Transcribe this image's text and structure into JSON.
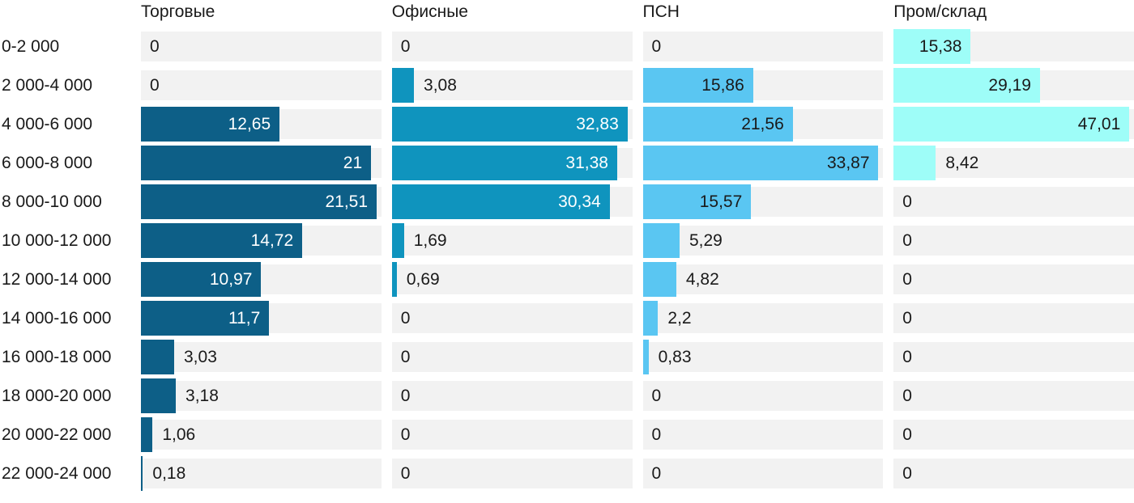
{
  "chart_data": {
    "type": "bar",
    "orientation": "horizontal",
    "title": "",
    "xlabel": "",
    "ylabel": "",
    "grid": false,
    "legend_position": "column-headers-top",
    "scale": "independent-per-series-max-full-width",
    "decimal_separator": ",",
    "track_color": "#f2f2f2",
    "text_color": "#1a1a1a",
    "categories": [
      "0-2 000",
      "2 000-4 000",
      "4 000-6 000",
      "6 000-8 000",
      "8 000-10 000",
      "10 000-12 000",
      "12 000-14 000",
      "14 000-16 000",
      "16 000-18 000",
      "18 000-20 000",
      "20 000-22 000",
      "22 000-24 000"
    ],
    "series": [
      {
        "name": "Торговые",
        "color": "#0d5f87",
        "label_color_inside": "#ffffff",
        "values": [
          0,
          0,
          12.65,
          21,
          21.51,
          14.72,
          10.97,
          11.7,
          3.03,
          3.18,
          1.06,
          0.18
        ]
      },
      {
        "name": "Офисные",
        "color": "#0f94be",
        "label_color_inside": "#ffffff",
        "values": [
          0,
          3.08,
          32.83,
          31.38,
          30.34,
          1.69,
          0.69,
          0,
          0,
          0,
          0,
          0
        ]
      },
      {
        "name": "ПСН",
        "color": "#5ac6f2",
        "label_color_inside": "#1a1a1a",
        "values": [
          0,
          15.86,
          21.56,
          33.87,
          15.57,
          5.29,
          4.82,
          2.2,
          0.83,
          0,
          0,
          0
        ]
      },
      {
        "name": "Пром/склад",
        "color": "#9efdf8",
        "label_color_inside": "#1a1a1a",
        "values": [
          15.38,
          29.19,
          47.01,
          8.42,
          0,
          0,
          0,
          0,
          0,
          0,
          0,
          0
        ]
      }
    ]
  }
}
